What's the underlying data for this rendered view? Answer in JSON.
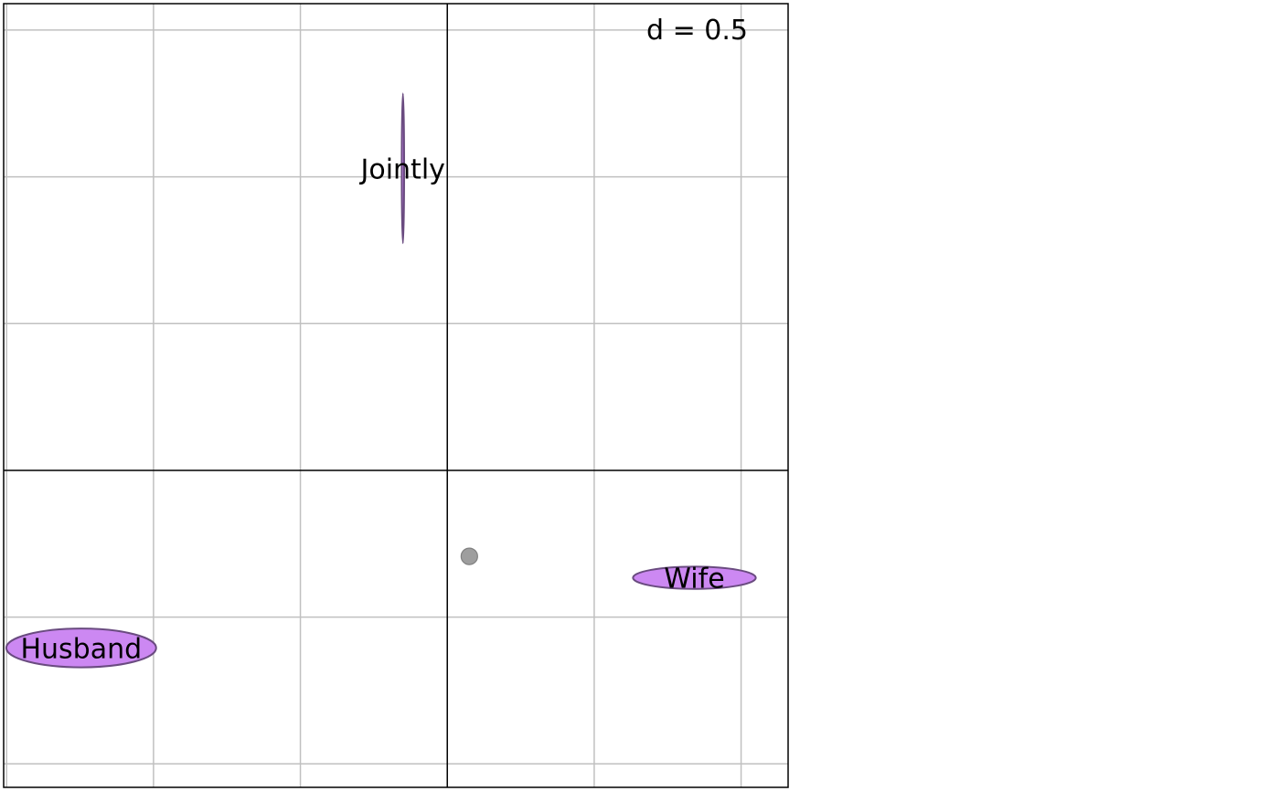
{
  "chart_data": {
    "type": "scatter",
    "title": "",
    "xlabel": "",
    "ylabel": "",
    "scale_label": "d = 0.5",
    "grid_step": 0.5,
    "xlim": [
      -1.51,
      1.16
    ],
    "ylim": [
      -1.08,
      1.59
    ],
    "grid": true,
    "axes_origin": [
      0,
      0
    ],
    "colors": {
      "grid": "#c0c0c0",
      "axis": "#000000",
      "ellipse_fill": "#cc88f2",
      "ellipse_stroke": "#6a4b80",
      "point": "#9e9e9e",
      "point_stroke": "#808080"
    },
    "categories": [
      {
        "name": "Jointly",
        "x": -0.151,
        "y": 1.029,
        "sd_x": 0.004,
        "sd_y": 0.255
      },
      {
        "name": "Husband",
        "x": -1.246,
        "y": -0.605,
        "sd_x": 0.255,
        "sd_y": 0.066
      },
      {
        "name": "Wife",
        "x": 0.841,
        "y": -0.366,
        "sd_x": 0.209,
        "sd_y": 0.038
      }
    ],
    "points": [
      {
        "x": 0.075,
        "y": -0.293
      }
    ]
  }
}
